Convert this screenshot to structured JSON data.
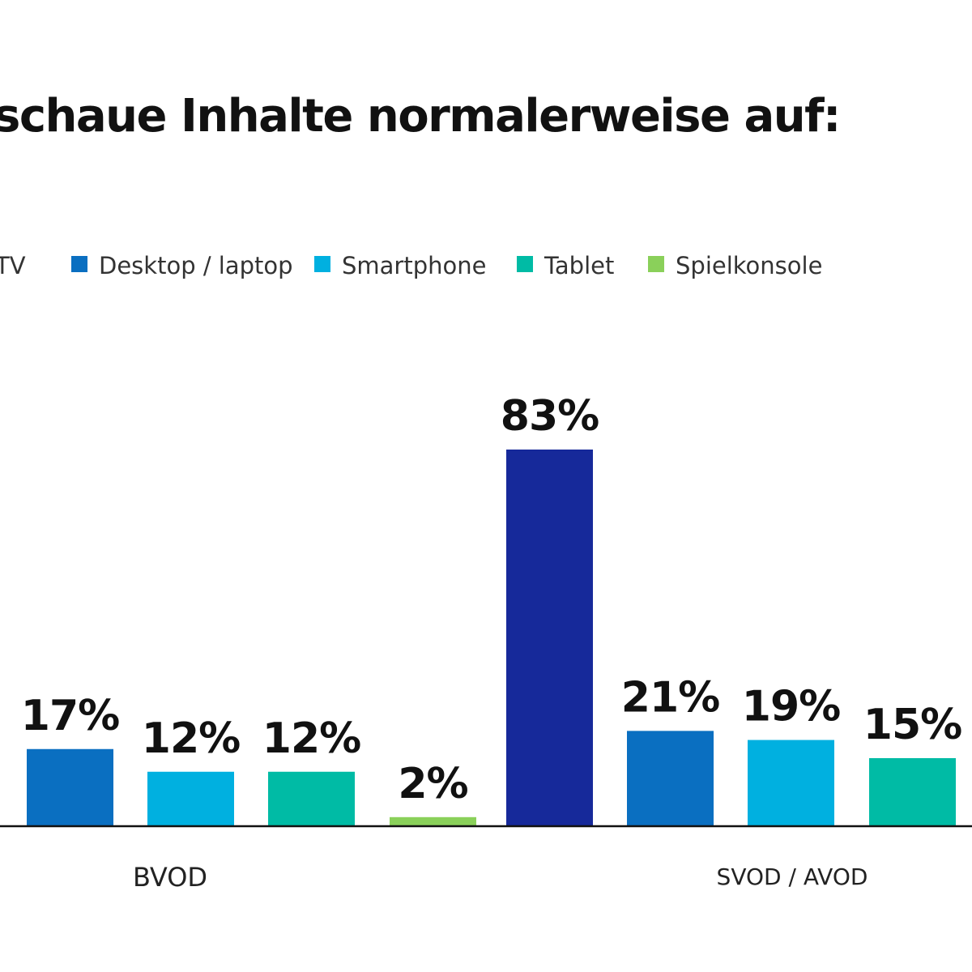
{
  "chart_data": {
    "type": "bar",
    "title": "schaue Inhalte normalerweise auf:",
    "legend": [
      {
        "label": "TV",
        "color": "#16299a"
      },
      {
        "label": "Desktop / laptop",
        "color": "#0a6fc1"
      },
      {
        "label": "Smartphone",
        "color": "#00b0e0"
      },
      {
        "label": "Tablet",
        "color": "#00bba5"
      },
      {
        "label": "Spielkonsole",
        "color": "#8ad05a"
      }
    ],
    "groups": [
      "BVOD",
      "SVOD / AVOD"
    ],
    "bars": [
      {
        "group": "BVOD",
        "series": "Desktop / laptop",
        "value": 17,
        "label": "17%",
        "color": "#0a6fc1"
      },
      {
        "group": "BVOD",
        "series": "Smartphone",
        "value": 12,
        "label": "12%",
        "color": "#00b0e0"
      },
      {
        "group": "BVOD",
        "series": "Tablet",
        "value": 12,
        "label": "12%",
        "color": "#00bba5"
      },
      {
        "group": "BVOD",
        "series": "Spielkonsole",
        "value": 2,
        "label": "2%",
        "color": "#8ad05a"
      },
      {
        "group": "SVOD / AVOD",
        "series": "TV",
        "value": 83,
        "label": "83%",
        "color": "#16299a"
      },
      {
        "group": "SVOD / AVOD",
        "series": "Desktop / laptop",
        "value": 21,
        "label": "21%",
        "color": "#0a6fc1"
      },
      {
        "group": "SVOD / AVOD",
        "series": "Smartphone",
        "value": 19,
        "label": "19%",
        "color": "#00b0e0"
      },
      {
        "group": "SVOD / AVOD",
        "series": "Tablet",
        "value": 15,
        "label": "15%",
        "color": "#00bba5"
      }
    ],
    "ylim": [
      0,
      83
    ],
    "grid": false,
    "legend_position": "top"
  }
}
